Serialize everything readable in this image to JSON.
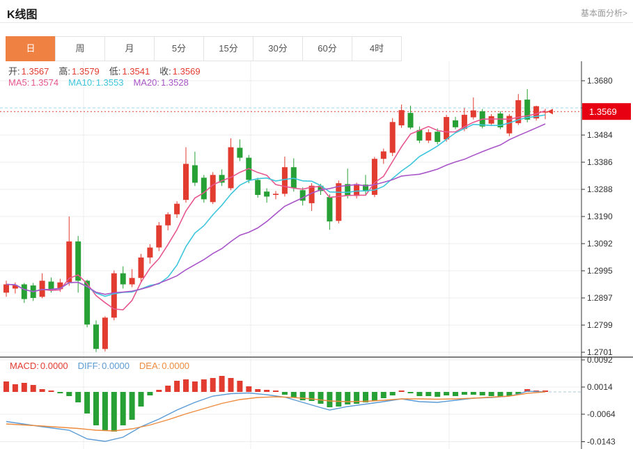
{
  "header": {
    "title": "K线图",
    "link": "基本面分析>"
  },
  "tabs": {
    "items": [
      "日",
      "周",
      "月",
      "5分",
      "15分",
      "30分",
      "60分",
      "4时"
    ],
    "active_index": 0
  },
  "ohlc_readout": {
    "items": [
      {
        "label": "开:",
        "value": "1.3567"
      },
      {
        "label": "高:",
        "value": "1.3579"
      },
      {
        "label": "低:",
        "value": "1.3541"
      },
      {
        "label": "收:",
        "value": "1.3569"
      }
    ]
  },
  "ma_readout": {
    "items": [
      {
        "label": "MA5:",
        "value": "1.3574",
        "color": "#e7578f"
      },
      {
        "label": "MA10:",
        "value": "1.3553",
        "color": "#3ec6dc"
      },
      {
        "label": "MA20:",
        "value": "1.3528",
        "color": "#a855c8"
      }
    ]
  },
  "macd_readout": {
    "items": [
      {
        "label": "MACD:",
        "value": "0.0000",
        "color": "#e23b30"
      },
      {
        "label": "DIFF:",
        "value": "0.0000",
        "color": "#5b9bd5"
      },
      {
        "label": "DEA:",
        "value": "0.0000",
        "color": "#ed8b3e"
      }
    ]
  },
  "colors": {
    "up": "#e23b30",
    "down": "#27a135",
    "ma5": "#e7578f",
    "ma10": "#3ec6dc",
    "ma20": "#a855c8",
    "diff": "#5b9bd5",
    "dea": "#ed8b3e",
    "tab_accent": "#ef8143",
    "badge_bg": "#e60012",
    "price_line": "#e23b30",
    "high_line": "#9fd8ee",
    "grid": "#ececec",
    "axis": "#555555",
    "tick_text": "#333333"
  },
  "chart_data": {
    "type": "candlestick_with_macd",
    "title": "K线图",
    "price_axis": {
      "ticks": [
        "1.3680",
        "1.3582",
        "1.3484",
        "1.3386",
        "1.3288",
        "1.3190",
        "1.3092",
        "1.2995",
        "1.2897",
        "1.2799",
        "1.2701"
      ],
      "range": [
        1.2701,
        1.368
      ],
      "current_price_label": "1.3569",
      "current_price": 1.3569,
      "high_dashed_line": 1.3582
    },
    "macd_axis": {
      "ticks": [
        "0.0092",
        "0.0014",
        "-0.0064",
        "-0.0143"
      ],
      "range": [
        -0.0143,
        0.0092
      ]
    },
    "candles": [
      [
        1.2915,
        1.2958,
        1.29,
        1.2945
      ],
      [
        1.293,
        1.2952,
        1.2912,
        1.2942
      ],
      [
        1.2945,
        1.295,
        1.2878,
        1.2892
      ],
      [
        1.2941,
        1.295,
        1.2885,
        1.2896
      ],
      [
        1.29,
        1.2985,
        1.2895,
        1.2958
      ],
      [
        1.2955,
        1.297,
        1.2915,
        1.2928
      ],
      [
        1.2928,
        1.2965,
        1.2918,
        1.2952
      ],
      [
        1.2952,
        1.319,
        1.294,
        1.31
      ],
      [
        1.31,
        1.312,
        1.2915,
        1.2958
      ],
      [
        1.2958,
        1.2962,
        1.279,
        1.28
      ],
      [
        1.28,
        1.2815,
        1.2701,
        1.2712
      ],
      [
        1.2712,
        1.283,
        1.2703,
        1.2825
      ],
      [
        1.2825,
        1.2995,
        1.2815,
        1.2985
      ],
      [
        1.2985,
        1.301,
        1.293,
        1.2945
      ],
      [
        1.2945,
        1.3,
        1.2935,
        1.2968
      ],
      [
        1.2968,
        1.3055,
        1.2955,
        1.3042
      ],
      [
        1.3042,
        1.309,
        1.302,
        1.3078
      ],
      [
        1.3078,
        1.317,
        1.3065,
        1.3158
      ],
      [
        1.3158,
        1.3205,
        1.314,
        1.3198
      ],
      [
        1.3198,
        1.3245,
        1.3185,
        1.3236
      ],
      [
        1.325,
        1.344,
        1.324,
        1.338
      ],
      [
        1.3375,
        1.3424,
        1.33,
        1.3312
      ],
      [
        1.333,
        1.334,
        1.324,
        1.3252
      ],
      [
        1.3242,
        1.335,
        1.3235,
        1.334
      ],
      [
        1.334,
        1.336,
        1.33,
        1.3312
      ],
      [
        1.3292,
        1.3472,
        1.3285,
        1.344
      ],
      [
        1.3438,
        1.3468,
        1.339,
        1.3402
      ],
      [
        1.3402,
        1.3412,
        1.331,
        1.3322
      ],
      [
        1.3322,
        1.333,
        1.3258,
        1.3268
      ],
      [
        1.328,
        1.3292,
        1.324,
        1.3262
      ],
      [
        1.3268,
        1.3282,
        1.3252,
        1.3272
      ],
      [
        1.3272,
        1.3406,
        1.3262,
        1.3368
      ],
      [
        1.3368,
        1.34,
        1.328,
        1.3293
      ],
      [
        1.3285,
        1.3295,
        1.323,
        1.3247
      ],
      [
        1.3238,
        1.331,
        1.321,
        1.3301
      ],
      [
        1.3301,
        1.3308,
        1.3268,
        1.3282
      ],
      [
        1.326,
        1.327,
        1.3142,
        1.3172
      ],
      [
        1.3174,
        1.332,
        1.3165,
        1.331
      ],
      [
        1.3307,
        1.3363,
        1.3255,
        1.3264
      ],
      [
        1.3264,
        1.3312,
        1.3255,
        1.3307
      ],
      [
        1.3305,
        1.334,
        1.327,
        1.3281
      ],
      [
        1.3268,
        1.3405,
        1.326,
        1.3398
      ],
      [
        1.3398,
        1.3435,
        1.338,
        1.3425
      ],
      [
        1.342,
        1.3545,
        1.3408,
        1.3531
      ],
      [
        1.3519,
        1.3594,
        1.351,
        1.3574
      ],
      [
        1.3564,
        1.359,
        1.3505,
        1.3511
      ],
      [
        1.3502,
        1.3515,
        1.3455,
        1.3464
      ],
      [
        1.3464,
        1.3505,
        1.3455,
        1.3494
      ],
      [
        1.3496,
        1.3508,
        1.345,
        1.3459
      ],
      [
        1.3468,
        1.3557,
        1.346,
        1.3549
      ],
      [
        1.3537,
        1.355,
        1.3505,
        1.3512
      ],
      [
        1.3506,
        1.3582,
        1.3498,
        1.3557
      ],
      [
        1.3548,
        1.362,
        1.354,
        1.3573
      ],
      [
        1.357,
        1.3578,
        1.3508,
        1.3515
      ],
      [
        1.3525,
        1.356,
        1.3518,
        1.3552
      ],
      [
        1.3562,
        1.357,
        1.3505,
        1.3512
      ],
      [
        1.349,
        1.356,
        1.348,
        1.3553
      ],
      [
        1.3527,
        1.3632,
        1.352,
        1.361
      ],
      [
        1.3612,
        1.365,
        1.353,
        1.354
      ],
      [
        1.3544,
        1.359,
        1.3536,
        1.3588
      ],
      [
        1.3567,
        1.3579,
        1.3541,
        1.3569
      ]
    ],
    "moving_averages": {
      "ma5_last": 1.3574,
      "ma10_last": 1.3553,
      "ma20_last": 1.3528,
      "windows": [
        5,
        10,
        20
      ]
    },
    "macd": {
      "histogram": [
        0.003,
        0.0022,
        0.0026,
        0.002,
        0.0008,
        0.0002,
        -0.0004,
        -0.0012,
        -0.003,
        -0.0062,
        -0.0096,
        -0.0112,
        -0.0114,
        -0.0096,
        -0.008,
        -0.0042,
        -0.001,
        0.0006,
        0.0018,
        0.0032,
        0.0036,
        0.003,
        0.0036,
        0.004,
        0.0046,
        0.004,
        0.0032,
        0.0016,
        0.0008,
        0.0006,
        0.0004,
        -0.0008,
        -0.0016,
        -0.0024,
        -0.0026,
        -0.0034,
        -0.0044,
        -0.0042,
        -0.0036,
        -0.0034,
        -0.003,
        -0.0026,
        -0.0018,
        -0.001,
        0.0004,
        -0.0004,
        -0.0012,
        -0.0012,
        -0.0014,
        -0.001,
        -0.0012,
        -0.0008,
        -0.0008,
        -0.001,
        -0.0012,
        -0.0014,
        -0.0012,
        -0.0006,
        0.0008,
        0.0002,
        0.0
      ],
      "diff_points": [
        [
          0,
          -0.0085
        ],
        [
          4,
          -0.01
        ],
        [
          7,
          -0.011
        ],
        [
          9,
          -0.0135
        ],
        [
          11,
          -0.0142
        ],
        [
          13,
          -0.013
        ],
        [
          15,
          -0.01
        ],
        [
          17,
          -0.0078
        ],
        [
          19,
          -0.0052
        ],
        [
          21,
          -0.003
        ],
        [
          23,
          -0.0012
        ],
        [
          25,
          -0.0005
        ],
        [
          27,
          -0.0003
        ],
        [
          29,
          -0.0008
        ],
        [
          31,
          -0.0015
        ],
        [
          33,
          -0.003
        ],
        [
          35,
          -0.0045
        ],
        [
          36,
          -0.0052
        ],
        [
          38,
          -0.0042
        ],
        [
          40,
          -0.0035
        ],
        [
          42,
          -0.0028
        ],
        [
          44,
          -0.002
        ],
        [
          46,
          -0.0028
        ],
        [
          48,
          -0.003
        ],
        [
          50,
          -0.0024
        ],
        [
          52,
          -0.0018
        ],
        [
          54,
          -0.0016
        ],
        [
          56,
          -0.0012
        ],
        [
          57,
          -0.0006
        ],
        [
          58,
          0.0002
        ],
        [
          60,
          0.0
        ]
      ],
      "dea_points": [
        [
          0,
          -0.0092
        ],
        [
          4,
          -0.0098
        ],
        [
          8,
          -0.0105
        ],
        [
          10,
          -0.011
        ],
        [
          12,
          -0.0112
        ],
        [
          14,
          -0.0106
        ],
        [
          16,
          -0.0095
        ],
        [
          18,
          -0.008
        ],
        [
          20,
          -0.0063
        ],
        [
          22,
          -0.0048
        ],
        [
          24,
          -0.0033
        ],
        [
          26,
          -0.0022
        ],
        [
          28,
          -0.0016
        ],
        [
          30,
          -0.0014
        ],
        [
          32,
          -0.0016
        ],
        [
          34,
          -0.002
        ],
        [
          36,
          -0.0026
        ],
        [
          38,
          -0.0028
        ],
        [
          40,
          -0.0027
        ],
        [
          42,
          -0.0024
        ],
        [
          44,
          -0.002
        ],
        [
          46,
          -0.002
        ],
        [
          48,
          -0.0021
        ],
        [
          50,
          -0.002
        ],
        [
          52,
          -0.0018
        ],
        [
          54,
          -0.0015
        ],
        [
          56,
          -0.0012
        ],
        [
          58,
          -0.0004
        ],
        [
          60,
          0.0
        ]
      ]
    }
  }
}
